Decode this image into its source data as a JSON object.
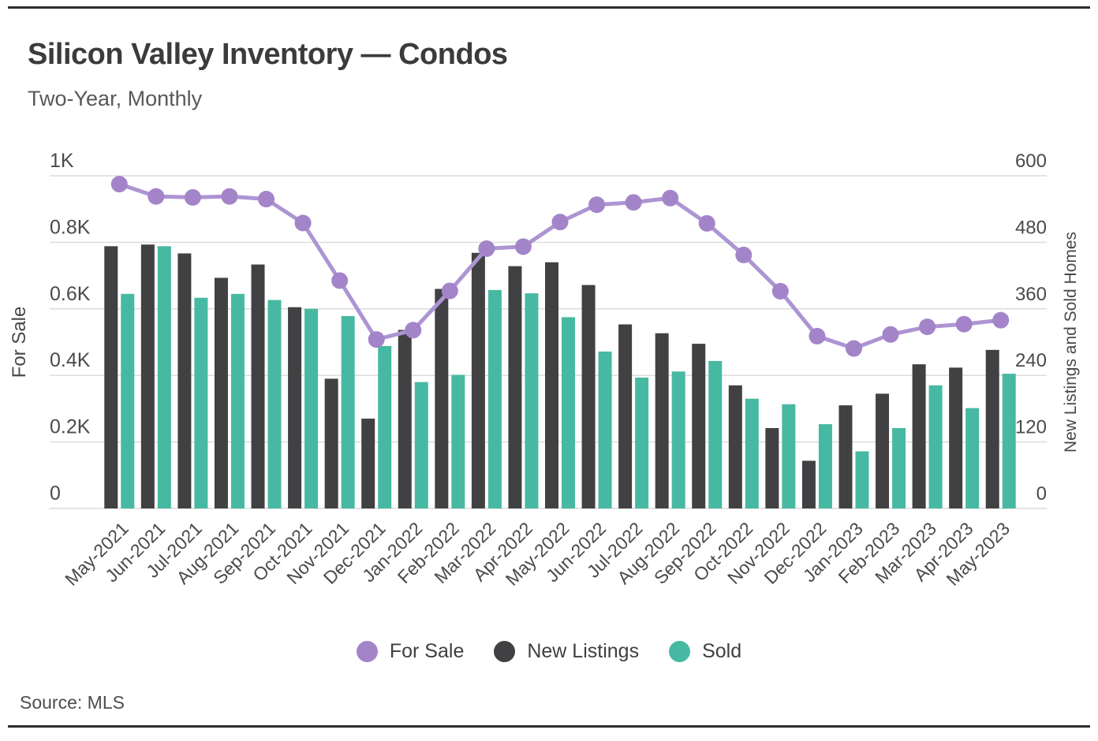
{
  "header": {
    "title": "Silicon Valley Inventory — Condos",
    "subtitle": "Two-Year, Monthly"
  },
  "source": {
    "text": "Source: MLS"
  },
  "legend": [
    {
      "label": "For Sale",
      "color": "#a384c9"
    },
    {
      "label": "New Listings",
      "color": "#414143"
    },
    {
      "label": "Sold",
      "color": "#47b9a2"
    }
  ],
  "chart_data": {
    "type": "combo",
    "grid": true,
    "legend_position": "bottom",
    "categories": [
      "May-2021",
      "Jun-2021",
      "Jul-2021",
      "Aug-2021",
      "Sep-2021",
      "Oct-2021",
      "Nov-2021",
      "Dec-2021",
      "Jan-2022",
      "Feb-2022",
      "Mar-2022",
      "Apr-2022",
      "May-2022",
      "Jun-2022",
      "Jul-2022",
      "Aug-2022",
      "Sep-2022",
      "Oct-2022",
      "Nov-2022",
      "Dec-2022",
      "Jan-2023",
      "Feb-2023",
      "Mar-2023",
      "Apr-2023",
      "May-2023"
    ],
    "series": [
      {
        "name": "For Sale",
        "type": "line",
        "axis": "left",
        "color": "#a384c9",
        "line_color": "#ad94d3",
        "values": [
          975,
          938,
          935,
          938,
          930,
          858,
          685,
          508,
          536,
          654,
          781,
          787,
          861,
          913,
          920,
          933,
          857,
          762,
          653,
          518,
          481,
          523,
          546,
          554,
          566
        ]
      },
      {
        "name": "New Listings",
        "type": "bar",
        "axis": "right",
        "color": "#414143",
        "values": [
          473,
          476,
          460,
          416,
          440,
          363,
          234,
          162,
          322,
          396,
          461,
          437,
          444,
          403,
          332,
          316,
          297,
          222,
          145,
          86,
          186,
          207,
          260,
          254,
          286
        ]
      },
      {
        "name": "Sold",
        "type": "bar",
        "axis": "right",
        "color": "#47b9a2",
        "values": [
          387,
          473,
          380,
          387,
          376,
          360,
          347,
          293,
          228,
          241,
          394,
          388,
          345,
          283,
          236,
          247,
          266,
          198,
          188,
          152,
          103,
          145,
          222,
          181,
          243
        ]
      }
    ],
    "left_axis": {
      "label": "For Sale",
      "min": 0,
      "max": 1000,
      "ticks": [
        "1K",
        "0.8K",
        "0.6K",
        "0.4K",
        "0.2K",
        "0"
      ]
    },
    "right_axis": {
      "label": "New Listings and Sold Homes",
      "min": 0,
      "max": 600,
      "ticks": [
        600,
        480,
        360,
        240,
        120,
        0
      ]
    },
    "colors": {
      "grid": "#dcdcdc",
      "tick": "#4a4a4a",
      "axis_title": "#484848"
    }
  }
}
